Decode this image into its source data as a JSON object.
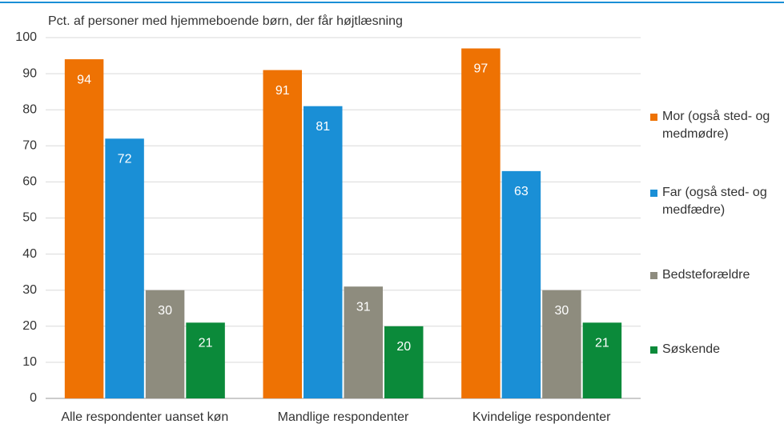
{
  "chart_data": {
    "type": "bar",
    "title": "Pct. af personer med hjemmeboende børn, der får højtlæsning",
    "categories": [
      "Alle respondenter uanset køn",
      "Mandlige respondenter",
      "Kvindelige respondenter"
    ],
    "series": [
      {
        "name": "Mor (også sted- og medmødre)",
        "color": "#ee7203",
        "values": [
          94,
          91,
          97
        ]
      },
      {
        "name": "Far (også sted- og medfædre)",
        "color": "#1a8fd6",
        "values": [
          72,
          81,
          63
        ]
      },
      {
        "name": "Bedsteforældre",
        "color": "#8e8c7e",
        "values": [
          30,
          31,
          30
        ]
      },
      {
        "name": "Søskende",
        "color": "#0b8a3a",
        "values": [
          21,
          20,
          21
        ]
      }
    ],
    "ylim": [
      0,
      100
    ],
    "yticks": [
      0,
      10,
      20,
      30,
      40,
      50,
      60,
      70,
      80,
      90,
      100
    ],
    "grid": true,
    "legend": "right"
  }
}
